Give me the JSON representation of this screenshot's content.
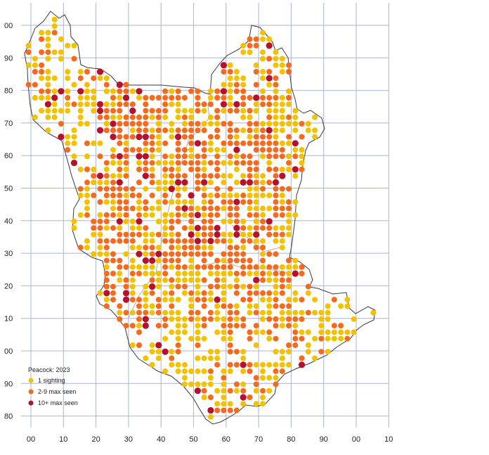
{
  "map": {
    "grid_y_labels": [
      "00",
      "90",
      "80",
      "70",
      "60",
      "50",
      "40",
      "30",
      "20",
      "10",
      "00",
      "90",
      "80"
    ],
    "grid_x_labels": [
      "00",
      "10",
      "20",
      "30",
      "40",
      "50",
      "60",
      "70",
      "80",
      "90",
      "00",
      "10"
    ],
    "grid_color": "#a9b4d6",
    "outline_color": "#3a3a3a",
    "boundary_color": "#b0b0b0"
  },
  "legend": {
    "title": "Peacock:  2023",
    "items": [
      {
        "label": "1 sighting",
        "color": "#f2c200"
      },
      {
        "label": "2-9 max seen",
        "color": "#f46a1f"
      },
      {
        "label": "10+ max seen",
        "color": "#b5102d"
      }
    ]
  }
}
